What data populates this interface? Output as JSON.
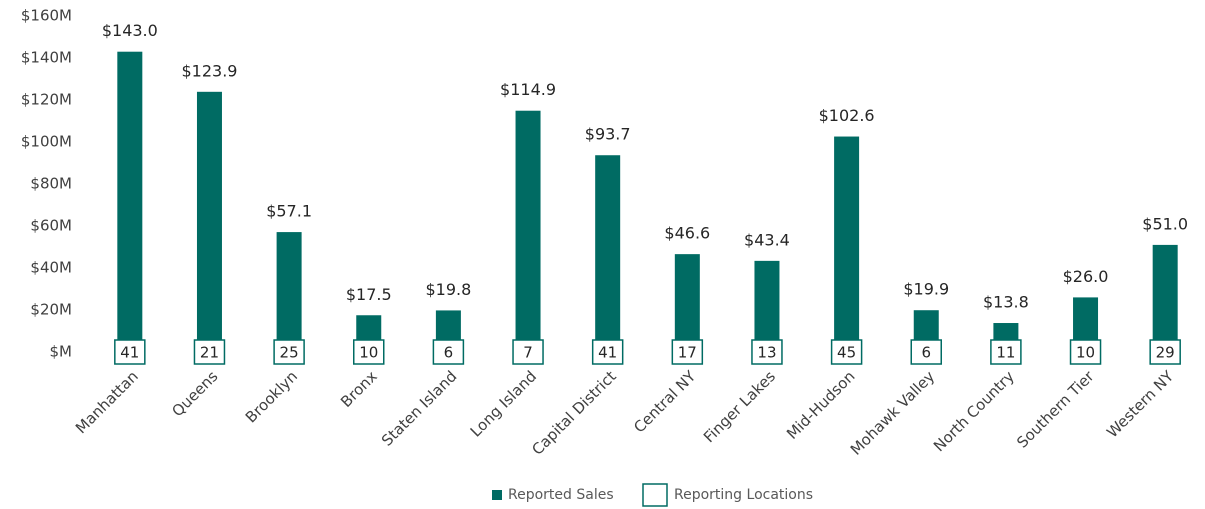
{
  "chart_data": {
    "type": "bar",
    "categories": [
      "Manhattan",
      "Queens",
      "Brooklyn",
      "Bronx",
      "Staten Island",
      "Long Island",
      "Capital District",
      "Central NY",
      "Finger Lakes",
      "Mid-Hudson",
      "Mohawk Valley",
      "North Country",
      "Southern Tier",
      "Western NY"
    ],
    "series": [
      {
        "name": "Reported Sales",
        "color": "#006b63",
        "values": [
          143.0,
          123.9,
          57.1,
          17.5,
          19.8,
          114.9,
          93.7,
          46.6,
          43.4,
          102.6,
          19.9,
          13.8,
          26.0,
          51.0
        ],
        "value_labels": [
          "$143.0",
          "$123.9",
          "$57.1",
          "$17.5",
          "$19.8",
          "$114.9",
          "$93.7",
          "$46.6",
          "$43.4",
          "$102.6",
          "$19.9",
          "$13.8",
          "$26.0",
          "$51.0"
        ]
      },
      {
        "name": "Reporting Locations",
        "color": "#006b63",
        "values": [
          41,
          21,
          25,
          10,
          6,
          7,
          41,
          17,
          13,
          45,
          6,
          11,
          10,
          29
        ]
      }
    ],
    "ylim": [
      0,
      160
    ],
    "yticks": [
      {
        "value": 0,
        "label": "$M"
      },
      {
        "value": 20,
        "label": "$20M"
      },
      {
        "value": 40,
        "label": "$40M"
      },
      {
        "value": 60,
        "label": "$60M"
      },
      {
        "value": 80,
        "label": "$80M"
      },
      {
        "value": 100,
        "label": "$100M"
      },
      {
        "value": 120,
        "label": "$120M"
      },
      {
        "value": 140,
        "label": "$140M"
      },
      {
        "value": 160,
        "label": "$160M"
      }
    ],
    "grid": false,
    "legend": "bottom"
  }
}
